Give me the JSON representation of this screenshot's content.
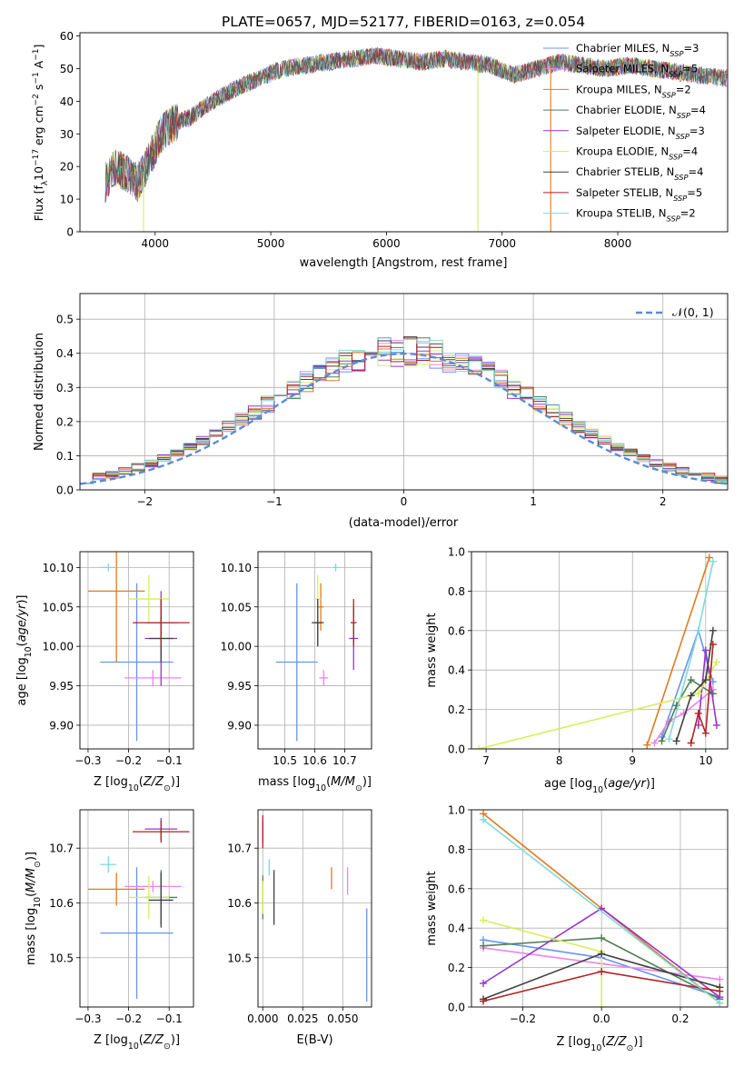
{
  "figure_title": "PLATE=0657, MJD=52177, FIBERID=0163, z=0.054",
  "colors": {
    "Chabrier MILES": "#6495ed",
    "Salpeter MILES": "#ee82ee",
    "Kroupa MILES": "#e07b20",
    "Chabrier ELODIE": "#4f7f55",
    "Salpeter ELODIE": "#9932cc",
    "Kroupa ELODIE": "#d4ef5c",
    "Chabrier STELIB": "#404040",
    "Salpeter STELIB": "#b22222",
    "Kroupa STELIB": "#7fd9dc"
  },
  "chart_data": [
    {
      "id": "spectrum",
      "type": "line",
      "title": "PLATE=0657, MJD=52177, FIBERID=0163, z=0.054",
      "xlabel": "wavelength [Angstrom, rest frame]",
      "ylabel": "Flux [f_λ10^-17 erg cm^-2 s^-1 A^-1]",
      "xlim": [
        3350,
        8950
      ],
      "ylim": [
        0,
        61
      ],
      "xticks": [
        4000,
        5000,
        6000,
        7000,
        8000
      ],
      "yticks": [
        0,
        10,
        20,
        30,
        40,
        50,
        60
      ],
      "grid": false,
      "legend_position": "top-right",
      "legend": [
        {
          "name": "Chabrier MILES",
          "nssp": "3"
        },
        {
          "name": "Salpeter MILES",
          "nssp": "5"
        },
        {
          "name": "Kroupa MILES",
          "nssp": "2"
        },
        {
          "name": "Chabrier ELODIE",
          "nssp": "4"
        },
        {
          "name": "Salpeter ELODIE",
          "nssp": "3"
        },
        {
          "name": "Kroupa ELODIE",
          "nssp": "4"
        },
        {
          "name": "Chabrier STELIB",
          "nssp": "4"
        },
        {
          "name": "Salpeter STELIB",
          "nssp": "5"
        },
        {
          "name": "Kroupa STELIB",
          "nssp": "2"
        }
      ],
      "continuum": {
        "x": [
          3570,
          3650,
          3750,
          3850,
          3950,
          4050,
          4150,
          4300,
          4500,
          4700,
          4900,
          5100,
          5300,
          5500,
          5700,
          5900,
          6100,
          6300,
          6500,
          6700,
          6900,
          7100,
          7300,
          7500,
          7700,
          7900,
          8100,
          8300,
          8500,
          8700,
          8950
        ],
        "y": [
          15,
          20,
          18,
          15,
          22,
          30,
          33,
          35,
          40,
          44,
          47,
          50,
          51,
          52,
          53,
          54,
          53,
          52,
          53,
          52,
          51,
          48,
          50,
          52,
          51,
          50,
          51,
          50,
          49,
          48,
          47
        ]
      },
      "glitches": [
        {
          "x": 3900,
          "y": 0,
          "series": "Kroupa ELODIE"
        },
        {
          "x": 6790,
          "y": 0,
          "series": "Kroupa ELODIE"
        },
        {
          "x": 7420,
          "y": 0,
          "series": "Kroupa MILES"
        }
      ]
    },
    {
      "id": "residuals",
      "type": "line",
      "xlabel": "(data-model)/error",
      "ylabel": "Normed distribution",
      "xlim": [
        -2.5,
        2.5
      ],
      "ylim": [
        0,
        0.575
      ],
      "xticks": [
        -2,
        -1,
        0,
        1,
        2
      ],
      "yticks": [
        0.0,
        0.1,
        0.2,
        0.3,
        0.4,
        0.5
      ],
      "grid": true,
      "legend_position": "top-right",
      "reference_label": "𝒩(0, 1)",
      "bin_width": 0.1
    },
    {
      "id": "age_vs_Z",
      "type": "scatter",
      "xlabel": "Z [log10(Z/Z☉)]",
      "ylabel": "age [log10(age/yr)]",
      "xlim": [
        -0.32,
        -0.04
      ],
      "ylim": [
        9.87,
        10.12
      ],
      "xticks": [
        -0.3,
        -0.2,
        -0.1
      ],
      "yticks": [
        9.9,
        9.95,
        10.0,
        10.05,
        10.1
      ],
      "grid": true,
      "points": [
        {
          "series": "Chabrier MILES",
          "x": -0.18,
          "xerr": 0.09,
          "y": 9.98,
          "yerr": 0.1
        },
        {
          "series": "Salpeter MILES",
          "x": -0.14,
          "xerr": 0.07,
          "y": 9.96,
          "yerr": 0.01
        },
        {
          "series": "Kroupa MILES",
          "x": -0.23,
          "xerr": 0.07,
          "y": 10.07,
          "yerr": 0.09
        },
        {
          "series": "Chabrier ELODIE",
          "x": -0.12,
          "xerr": 0.04,
          "y": 10.03,
          "yerr": 0.03
        },
        {
          "series": "Salpeter ELODIE",
          "x": -0.12,
          "xerr": 0.04,
          "y": 10.01,
          "yerr": 0.06
        },
        {
          "series": "Kroupa ELODIE",
          "x": -0.15,
          "xerr": 0.05,
          "y": 10.06,
          "yerr": 0.03
        },
        {
          "series": "Chabrier STELIB",
          "x": -0.12,
          "xerr": 0.03,
          "y": 10.01,
          "yerr": 0.03
        },
        {
          "series": "Salpeter STELIB",
          "x": -0.12,
          "xerr": 0.07,
          "y": 10.03,
          "yerr": 0.03
        },
        {
          "series": "Kroupa STELIB",
          "x": -0.25,
          "xerr": 0.02,
          "y": 10.1,
          "yerr": 0.005
        }
      ]
    },
    {
      "id": "age_vs_mass",
      "type": "scatter",
      "xlabel": "mass [log10(M/M☉)]",
      "ylabel": "",
      "xlim": [
        10.41,
        10.79
      ],
      "ylim": [
        9.87,
        10.12
      ],
      "xticks": [
        10.5,
        10.6,
        10.7
      ],
      "yticks": [
        9.9,
        9.95,
        10.0,
        10.05,
        10.1
      ],
      "grid": true,
      "points": [
        {
          "series": "Chabrier MILES",
          "x": 10.54,
          "xerr": 0.07,
          "y": 9.98,
          "yerr": 0.1
        },
        {
          "series": "Salpeter MILES",
          "x": 10.63,
          "xerr": 0.015,
          "y": 9.96,
          "yerr": 0.01
        },
        {
          "series": "Kroupa MILES",
          "x": 10.62,
          "xerr": 0.01,
          "y": 10.05,
          "yerr": 0.03
        },
        {
          "series": "Chabrier ELODIE",
          "x": 10.61,
          "xerr": 0.01,
          "y": 10.03,
          "yerr": 0.03
        },
        {
          "series": "Salpeter ELODIE",
          "x": 10.73,
          "xerr": 0.015,
          "y": 10.01,
          "yerr": 0.04
        },
        {
          "series": "Kroupa ELODIE",
          "x": 10.61,
          "xerr": 0.01,
          "y": 10.06,
          "yerr": 0.03
        },
        {
          "series": "Chabrier STELIB",
          "x": 10.61,
          "xerr": 0.02,
          "y": 10.03,
          "yerr": 0.03
        },
        {
          "series": "Salpeter STELIB",
          "x": 10.73,
          "xerr": 0.01,
          "y": 10.03,
          "yerr": 0.03
        },
        {
          "series": "Kroupa STELIB",
          "x": 10.67,
          "xerr": 0.01,
          "y": 10.1,
          "yerr": 0.005
        }
      ]
    },
    {
      "id": "weight_vs_age",
      "type": "line",
      "xlabel": "age [log10(age/yr)]",
      "ylabel": "mass weight",
      "xlim": [
        6.8,
        10.3
      ],
      "ylim": [
        0,
        1
      ],
      "xticks": [
        7,
        8,
        9,
        10
      ],
      "yticks": [
        0.0,
        0.2,
        0.4,
        0.6,
        0.8,
        1.0
      ],
      "grid": true,
      "series": [
        {
          "name": "Chabrier MILES",
          "x": [
            9.4,
            9.9,
            10.1
          ],
          "y": [
            0.06,
            0.6,
            0.34
          ]
        },
        {
          "name": "Salpeter MILES",
          "x": [
            9.3,
            9.5,
            9.7,
            10.1
          ],
          "y": [
            0.03,
            0.14,
            0.18,
            0.3
          ]
        },
        {
          "name": "Kroupa MILES",
          "x": [
            9.2,
            10.05
          ],
          "y": [
            0.02,
            0.97
          ]
        },
        {
          "name": "Chabrier ELODIE",
          "x": [
            9.4,
            9.6,
            9.8,
            10.1
          ],
          "y": [
            0.04,
            0.22,
            0.35,
            0.28
          ]
        },
        {
          "name": "Salpeter ELODIE",
          "x": [
            9.9,
            10.0,
            10.15
          ],
          "y": [
            0.12,
            0.5,
            0.12
          ]
        },
        {
          "name": "Kroupa ELODIE",
          "x": [
            6.9,
            9.9,
            10.15
          ],
          "y": [
            0.0,
            0.28,
            0.44
          ]
        },
        {
          "name": "Chabrier STELIB",
          "x": [
            9.6,
            9.8,
            10.0,
            10.1
          ],
          "y": [
            0.04,
            0.27,
            0.35,
            0.6
          ]
        },
        {
          "name": "Salpeter STELIB",
          "x": [
            9.8,
            9.9,
            10.0,
            10.1
          ],
          "y": [
            0.03,
            0.18,
            0.08,
            0.53
          ]
        },
        {
          "name": "Kroupa STELIB",
          "x": [
            9.5,
            9.9,
            10.1
          ],
          "y": [
            0.05,
            0.6,
            0.95
          ]
        }
      ]
    },
    {
      "id": "mass_vs_Z",
      "type": "scatter",
      "xlabel": "Z [log10(Z/Z☉)]",
      "ylabel": "mass [log10(M/M☉)]",
      "xlim": [
        -0.32,
        -0.04
      ],
      "ylim": [
        10.41,
        10.77
      ],
      "xticks": [
        -0.3,
        -0.2,
        -0.1
      ],
      "yticks": [
        10.5,
        10.6,
        10.7
      ],
      "grid": true,
      "points": [
        {
          "series": "Chabrier MILES",
          "x": -0.18,
          "xerr": 0.09,
          "y": 10.545,
          "yerr": 0.12
        },
        {
          "series": "Salpeter MILES",
          "x": -0.14,
          "xerr": 0.07,
          "y": 10.63,
          "yerr": 0.01
        },
        {
          "series": "Kroupa MILES",
          "x": -0.23,
          "xerr": 0.07,
          "y": 10.625,
          "yerr": 0.03
        },
        {
          "series": "Chabrier ELODIE",
          "x": -0.12,
          "xerr": 0.04,
          "y": 10.61,
          "yerr": 0.05
        },
        {
          "series": "Salpeter ELODIE",
          "x": -0.12,
          "xerr": 0.04,
          "y": 10.735,
          "yerr": 0.02
        },
        {
          "series": "Kroupa ELODIE",
          "x": -0.15,
          "xerr": 0.05,
          "y": 10.61,
          "yerr": 0.04
        },
        {
          "series": "Chabrier STELIB",
          "x": -0.12,
          "xerr": 0.03,
          "y": 10.605,
          "yerr": 0.05
        },
        {
          "series": "Salpeter STELIB",
          "x": -0.12,
          "xerr": 0.07,
          "y": 10.73,
          "yerr": 0.02
        },
        {
          "series": "Kroupa STELIB",
          "x": -0.25,
          "xerr": 0.02,
          "y": 10.67,
          "yerr": 0.015
        }
      ]
    },
    {
      "id": "mass_vs_ebv",
      "type": "scatter",
      "xlabel": "E(B-V)",
      "ylabel": "",
      "xlim": [
        -0.003,
        0.068
      ],
      "ylim": [
        10.41,
        10.77
      ],
      "xticks": [
        0.0,
        0.025,
        0.05
      ],
      "xticklabels": [
        "0.000",
        "0.025",
        "0.050"
      ],
      "yticks": [
        10.5,
        10.6,
        10.7
      ],
      "grid": true,
      "points": [
        {
          "series": "Chabrier MILES",
          "x": 0.065,
          "y": 10.505,
          "yerr": 0.085
        },
        {
          "series": "Salpeter MILES",
          "x": 0.053,
          "y": 10.64,
          "yerr": 0.025
        },
        {
          "series": "Kroupa MILES",
          "x": 0.043,
          "y": 10.645,
          "yerr": 0.02
        },
        {
          "series": "Chabrier ELODIE",
          "x": 0.0,
          "y": 10.61,
          "yerr": 0.04
        },
        {
          "series": "Salpeter ELODIE",
          "x": 0.0,
          "y": 10.73,
          "yerr": 0.02
        },
        {
          "series": "Kroupa ELODIE",
          "x": 0.0,
          "y": 10.61,
          "yerr": 0.03
        },
        {
          "series": "Chabrier STELIB",
          "x": 0.007,
          "y": 10.61,
          "yerr": 0.05
        },
        {
          "series": "Salpeter STELIB",
          "x": 0.0,
          "y": 10.73,
          "yerr": 0.03
        },
        {
          "series": "Kroupa STELIB",
          "x": 0.004,
          "y": 10.665,
          "yerr": 0.015
        }
      ]
    },
    {
      "id": "weight_vs_Z",
      "type": "line",
      "xlabel": "Z [log10(Z/Z☉)]",
      "ylabel": "mass weight",
      "xlim": [
        -0.33,
        0.32
      ],
      "ylim": [
        0,
        1
      ],
      "xticks": [
        -0.2,
        0.0,
        0.2
      ],
      "yticks": [
        0.0,
        0.2,
        0.4,
        0.6,
        0.8,
        1.0
      ],
      "grid": true,
      "series": [
        {
          "name": "Chabrier MILES",
          "x": [
            -0.3,
            0.0,
            0.3
          ],
          "y": [
            0.34,
            0.25,
            0.05
          ]
        },
        {
          "name": "Salpeter MILES",
          "x": [
            -0.3,
            0.0,
            0.3
          ],
          "y": [
            0.3,
            0.22,
            0.14
          ]
        },
        {
          "name": "Kroupa MILES",
          "x": [
            -0.3,
            0.3
          ],
          "y": [
            0.98,
            0.02
          ]
        },
        {
          "name": "Chabrier ELODIE",
          "x": [
            -0.3,
            0.0,
            0.3
          ],
          "y": [
            0.31,
            0.35,
            0.04
          ]
        },
        {
          "name": "Salpeter ELODIE",
          "x": [
            -0.3,
            0.0,
            0.3
          ],
          "y": [
            0.12,
            0.5,
            0.05
          ]
        },
        {
          "name": "Kroupa ELODIE",
          "x": [
            -0.3,
            0.0,
            0.0
          ],
          "y": [
            0.44,
            0.28,
            0.0
          ]
        },
        {
          "name": "Chabrier STELIB",
          "x": [
            -0.3,
            0.0,
            0.3
          ],
          "y": [
            0.04,
            0.27,
            0.1
          ]
        },
        {
          "name": "Salpeter STELIB",
          "x": [
            -0.3,
            0.0,
            0.3
          ],
          "y": [
            0.03,
            0.18,
            0.08
          ]
        },
        {
          "name": "Kroupa STELIB",
          "x": [
            -0.3,
            0.3
          ],
          "y": [
            0.95,
            0.02
          ]
        }
      ]
    }
  ]
}
